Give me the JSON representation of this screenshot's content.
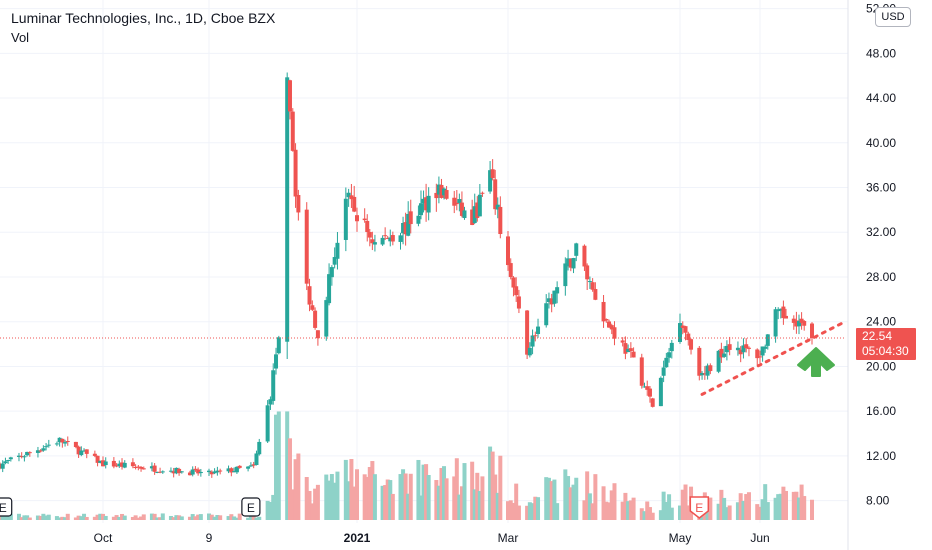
{
  "header": {
    "title": "Luminar Technologies, Inc., 1D, Cboe BZX",
    "volume_label": "Vol"
  },
  "currency_badge": "USD",
  "last_price": {
    "value": "22.54",
    "countdown": "05:04:30"
  },
  "colors": {
    "up": "#26a69a",
    "down": "#ef5350",
    "up_volume": "#8ed2c8",
    "down_volume": "#f4a5a4",
    "trendline": "#f0524f",
    "arrow": "#4caf50"
  },
  "earnings_markers": [
    {
      "label": "E",
      "date": "2020-08-25",
      "style": "dark"
    },
    {
      "label": "E",
      "date": "2020-11-24",
      "style": "dark"
    },
    {
      "label": "E",
      "date": "2021-05-10",
      "style": "red"
    }
  ],
  "chart_data": {
    "type": "candlestick",
    "title": "Luminar Technologies, Inc., 1D, Cboe BZX",
    "x_axis": {
      "type": "date",
      "ticks": [
        {
          "label": "Oct",
          "date": "2020-10-01"
        },
        {
          "label": "9",
          "date": "2020-11-09"
        },
        {
          "label": "2021",
          "date": "2021-01-01"
        },
        {
          "label": "Mar",
          "date": "2021-03-01"
        },
        {
          "label": "May",
          "date": "2021-05-03"
        },
        {
          "label": "Jun",
          "date": "2021-06-01"
        }
      ]
    },
    "y_axis": {
      "position": "right",
      "range": [
        6.0,
        52.5
      ],
      "ticks": [
        "8.00",
        "12.00",
        "16.00",
        "20.00",
        "24.00",
        "28.00",
        "32.00",
        "36.00",
        "40.00",
        "44.00",
        "48.00",
        "52.00"
      ]
    },
    "key_points": [
      {
        "date": "2020-08-24",
        "close": 11.2
      },
      {
        "date": "2020-09-15",
        "close": 13.4
      },
      {
        "date": "2020-10-01",
        "close": 11.3
      },
      {
        "date": "2020-11-09",
        "close": 10.4
      },
      {
        "date": "2020-11-25",
        "close": 11.0
      },
      {
        "date": "2020-12-01",
        "close": 17.5
      },
      {
        "date": "2020-12-04",
        "close": 23.0
      },
      {
        "date": "2020-12-07",
        "close": 47.0
      },
      {
        "date": "2020-12-10",
        "close": 36.0
      },
      {
        "date": "2020-12-14",
        "close": 27.0
      },
      {
        "date": "2020-12-18",
        "close": 23.0
      },
      {
        "date": "2020-12-28",
        "close": 35.0
      },
      {
        "date": "2021-01-08",
        "close": 31.0
      },
      {
        "date": "2021-01-20",
        "close": 32.5
      },
      {
        "date": "2021-02-01",
        "close": 36.0
      },
      {
        "date": "2021-02-15",
        "close": 33.0
      },
      {
        "date": "2021-02-22",
        "close": 37.0
      },
      {
        "date": "2021-03-01",
        "close": 29.0
      },
      {
        "date": "2021-03-08",
        "close": 21.5
      },
      {
        "date": "2021-03-18",
        "close": 26.5
      },
      {
        "date": "2021-03-26",
        "close": 30.5
      },
      {
        "date": "2021-04-06",
        "close": 24.0
      },
      {
        "date": "2021-04-16",
        "close": 20.5
      },
      {
        "date": "2021-04-23",
        "close": 16.5
      },
      {
        "date": "2021-05-03",
        "close": 24.5
      },
      {
        "date": "2021-05-11",
        "close": 19.0
      },
      {
        "date": "2021-05-20",
        "close": 22.0
      },
      {
        "date": "2021-06-01",
        "close": 21.0
      },
      {
        "date": "2021-06-07",
        "close": 24.5
      },
      {
        "date": "2021-06-14",
        "close": 24.5
      },
      {
        "date": "2021-06-21",
        "close": 22.54
      }
    ],
    "last_price": 22.54,
    "trendline": {
      "style": "dotted",
      "from": {
        "date": "2021-05-11",
        "price": 17.5
      },
      "to": {
        "date": "2021-07-05",
        "price": 24.0
      }
    },
    "grid": true
  }
}
